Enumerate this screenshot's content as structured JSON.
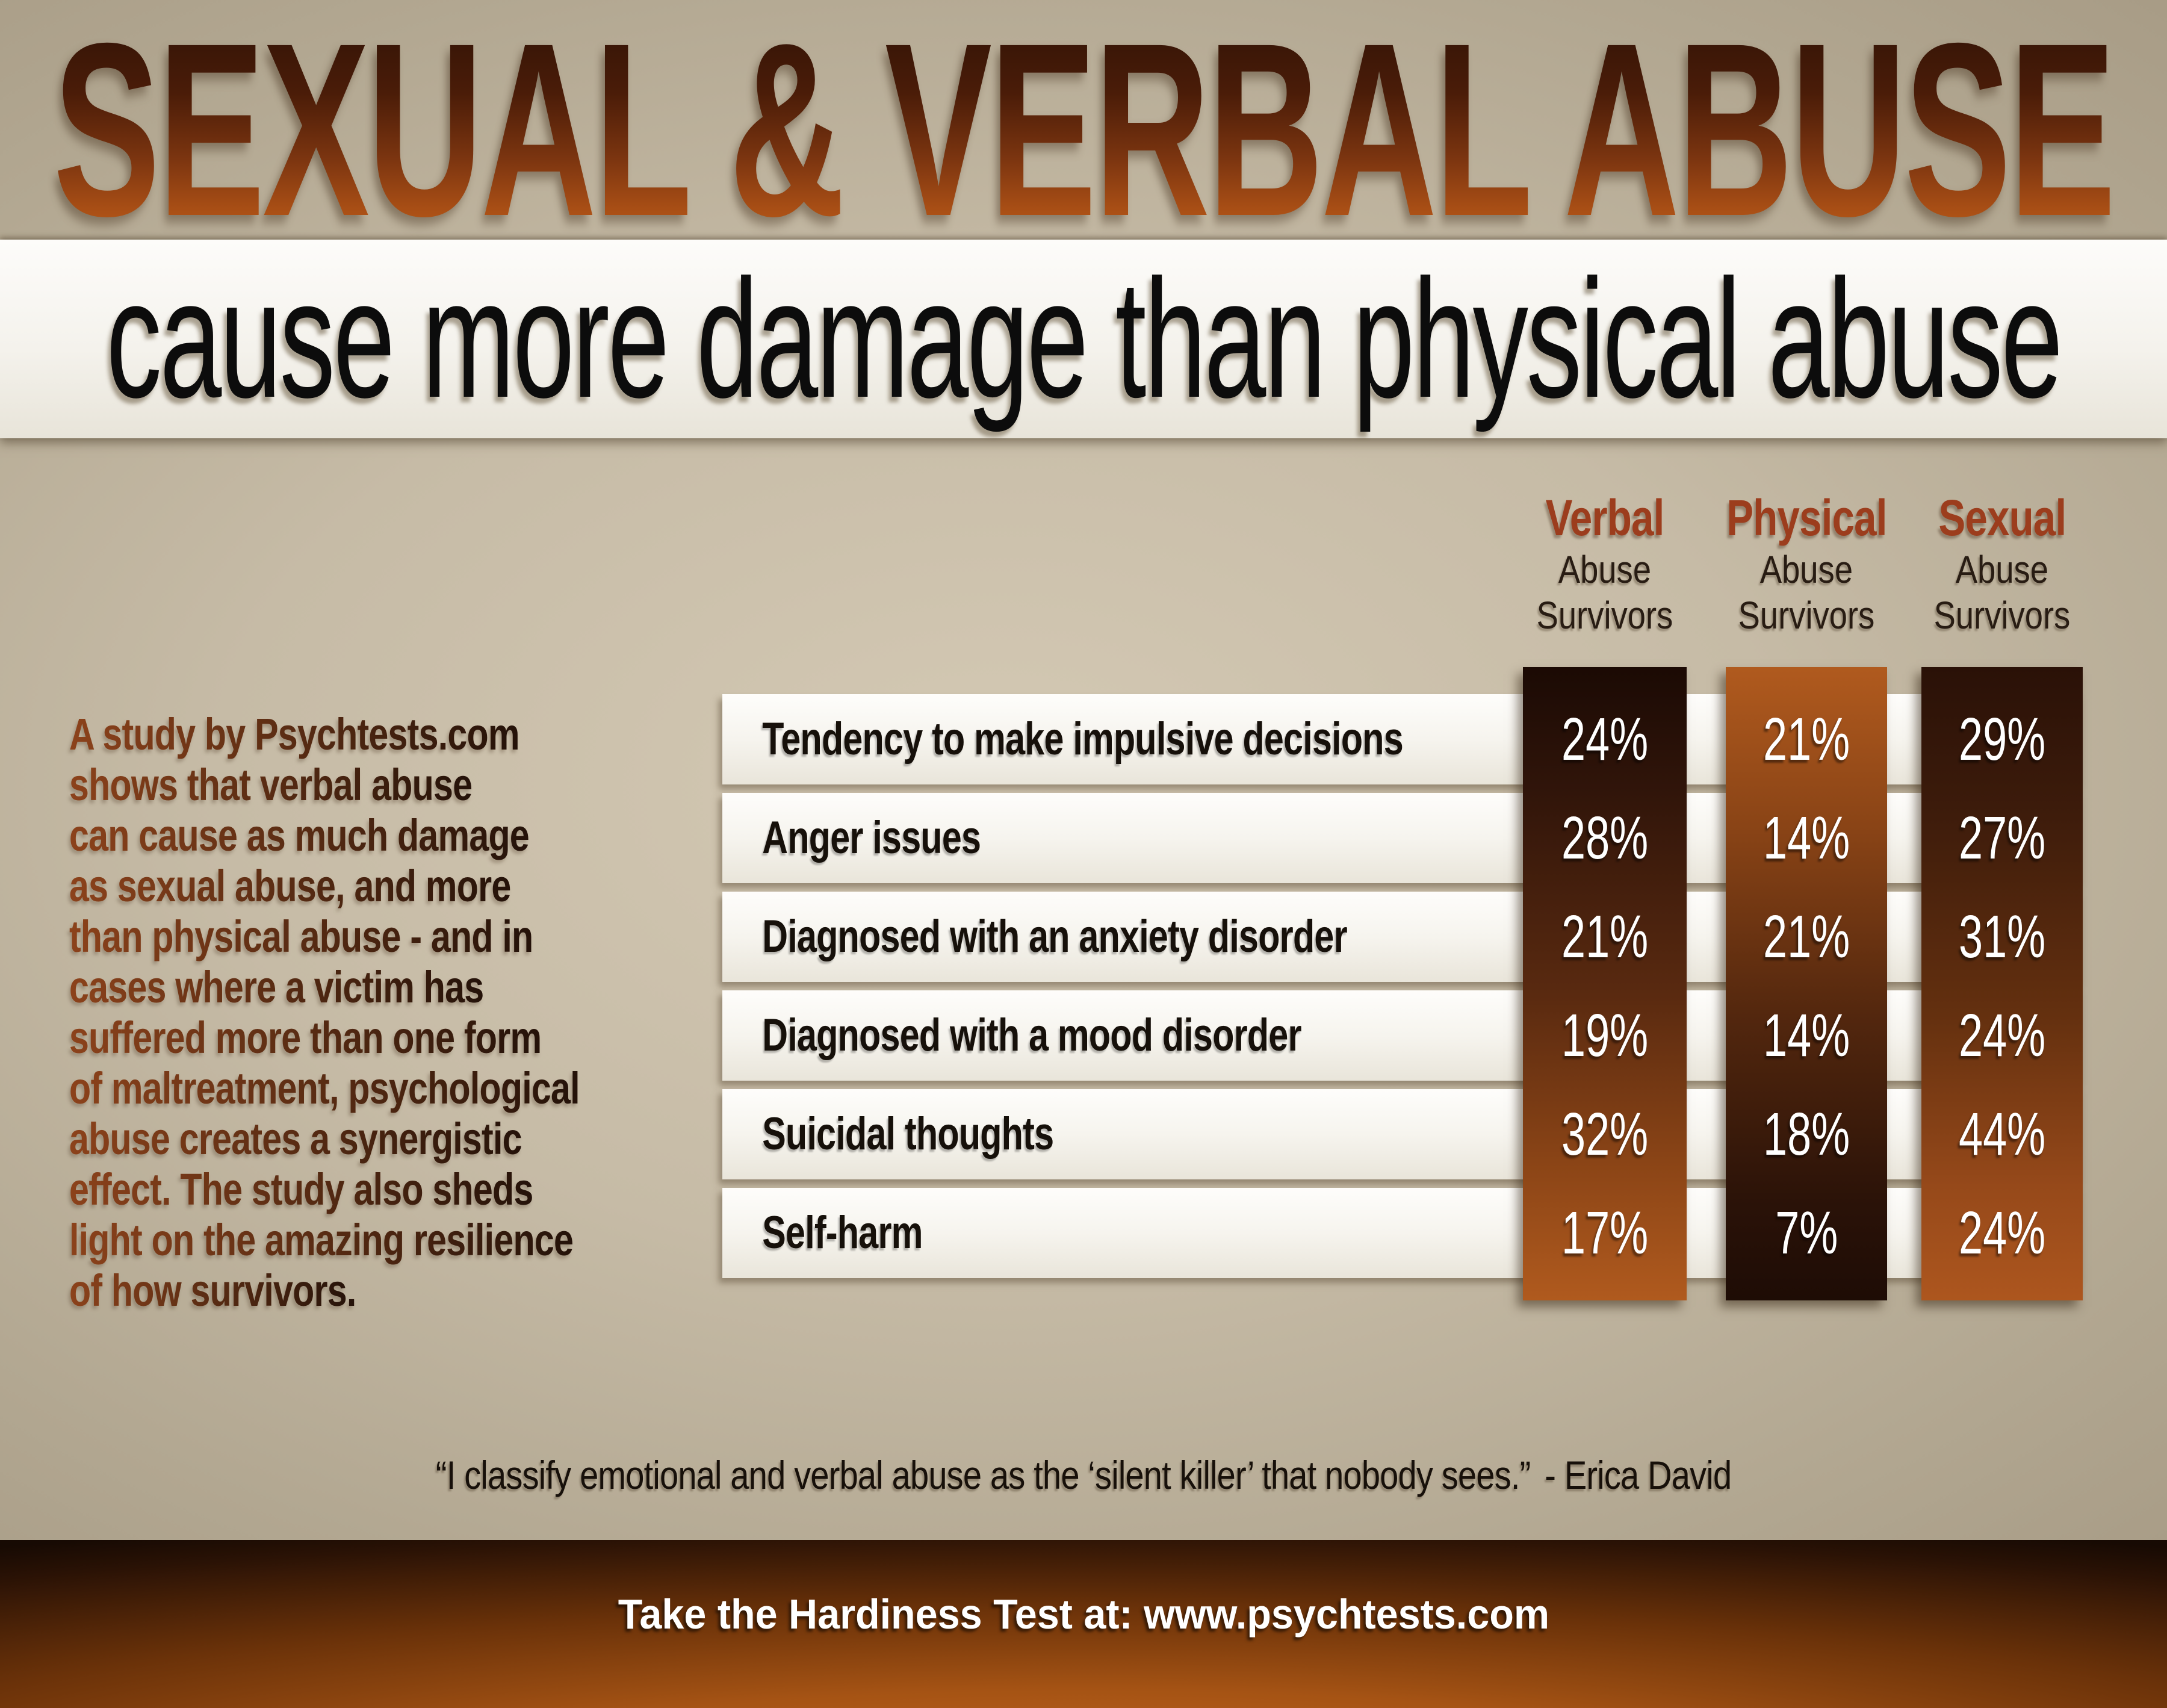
{
  "page": {
    "background_color": "#c6bba6",
    "accent_rust": "#9c3d1d"
  },
  "title": {
    "text": "SEXUAL & VERBAL ABUSE",
    "gradient_top": "#2e1206",
    "gradient_bottom": "#c4641c"
  },
  "subtitle": {
    "text": "cause more damage than physical abuse"
  },
  "intro": {
    "lines": [
      "A study by Psychtests.com",
      "shows that verbal abuse",
      "can cause as much damage",
      "as sexual abuse, and more",
      "than physical abuse - and in",
      "cases where a victim has",
      "suffered more than one form",
      "of maltreatment, psychological",
      "abuse creates a synergistic",
      "effect. The study also sheds",
      "light on the amazing resilience",
      "of how survivors."
    ]
  },
  "col_headers": [
    {
      "name": "Verbal",
      "line1": "Abuse",
      "line2": "Survivors",
      "column_color_top": "#1b0a04",
      "column_color_bottom": "#b05a1e"
    },
    {
      "name": "Physical",
      "line1": "Abuse",
      "line2": "Survivors",
      "column_color_top": "#b05a1e",
      "column_color_bottom": "#1e0c05"
    },
    {
      "name": "Sexual",
      "line1": "Abuse",
      "line2": "Survivors",
      "column_color_top": "#2a1107",
      "column_color_bottom": "#ad561e"
    }
  ],
  "chart_data": {
    "type": "table",
    "title": "SEXUAL & VERBAL ABUSE cause more damage than physical abuse",
    "columns": [
      "Verbal Abuse Survivors",
      "Physical Abuse Survivors",
      "Sexual Abuse Survivors"
    ],
    "rows": [
      {
        "label": "Tendency to make impulsive decisions",
        "values": [
          "24%",
          "21%",
          "29%"
        ]
      },
      {
        "label": "Anger issues",
        "values": [
          "28%",
          "14%",
          "27%"
        ]
      },
      {
        "label": "Diagnosed with an anxiety disorder",
        "values": [
          "21%",
          "21%",
          "31%"
        ]
      },
      {
        "label": "Diagnosed with a mood disorder",
        "values": [
          "19%",
          "14%",
          "24%"
        ]
      },
      {
        "label": "Suicidal thoughts",
        "values": [
          "32%",
          "18%",
          "44%"
        ]
      },
      {
        "label": "Self-harm",
        "values": [
          "17%",
          "7%",
          "24%"
        ]
      }
    ],
    "value_unit": "%"
  },
  "quote": {
    "text": "“I classify emotional and verbal abuse as the ‘silent killer’ that nobody sees.”",
    "attribution": "- Erica David"
  },
  "footer": {
    "text": "Take the Hardiness Test at: www.psychtests.com"
  }
}
